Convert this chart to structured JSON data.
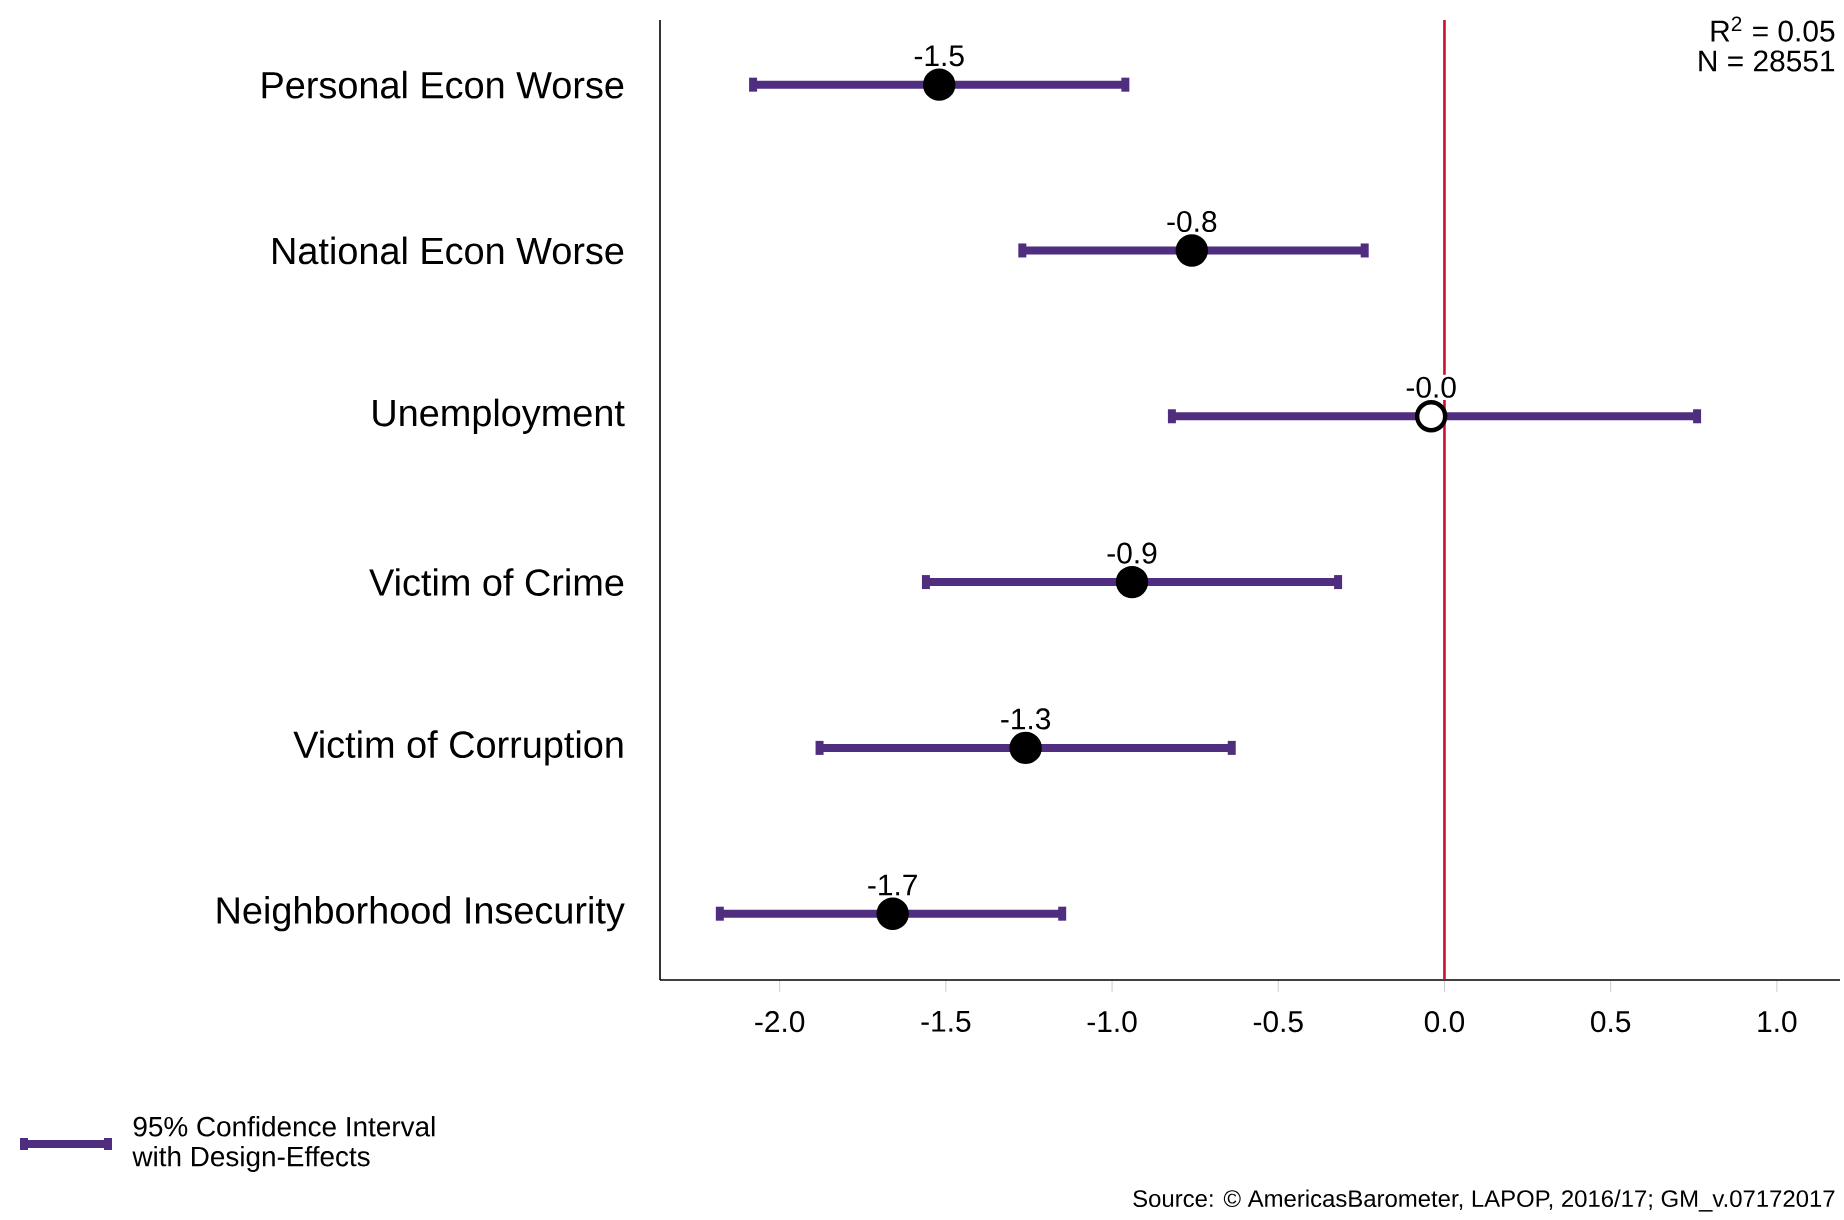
{
  "chart_data": {
    "type": "scatter",
    "orientation": "horizontal",
    "categories": [
      "Personal Econ Worse",
      "National Econ Worse",
      "Unemployment",
      "Victim of Crime",
      "Victim of Corruption",
      "Neighborhood Insecurity"
    ],
    "series": [
      {
        "name": "95% Confidence Interval with Design-Effects",
        "color": "#4f2d7f",
        "marker": "circle",
        "values": [
          -1.52,
          -0.76,
          -0.04,
          -0.94,
          -1.26,
          -1.66
        ],
        "errors": [
          [
            -2.08,
            -0.96
          ],
          [
            -1.27,
            -0.24
          ],
          [
            -0.82,
            0.76
          ],
          [
            -1.56,
            -0.32
          ],
          [
            -1.88,
            -0.64
          ],
          [
            -2.18,
            -1.15
          ]
        ],
        "colors": [
          "#000000",
          "#000000",
          "#ffffff",
          "#000000",
          "#000000",
          "#000000"
        ],
        "value_labels": [
          "-1.5",
          "-0.8",
          "-0.0",
          "-0.9",
          "-1.3",
          "-1.7"
        ]
      }
    ],
    "xlim": [
      -2.36,
      1.19
    ],
    "xticks": [
      {
        "value": -2,
        "label": "-2.0"
      },
      {
        "value": -1.5,
        "label": "-1.5"
      },
      {
        "value": -1,
        "label": "-1.0"
      },
      {
        "value": -0.5,
        "label": "-0.5"
      },
      {
        "value": 0,
        "label": "0.0"
      },
      {
        "value": 0.5,
        "label": "0.5"
      },
      {
        "value": 1,
        "label": "1.0"
      }
    ],
    "ref_lines": [
      {
        "axis": "x",
        "value": 0,
        "color": "#c8102e"
      }
    ],
    "legend": "bottom left",
    "annotations": [
      "R$^{2}$ =  0.05",
      "N =  28551",
      "Source: © AmericasBarometer, LAPOP, 2016/17; GM_v.07172017"
    ]
  }
}
